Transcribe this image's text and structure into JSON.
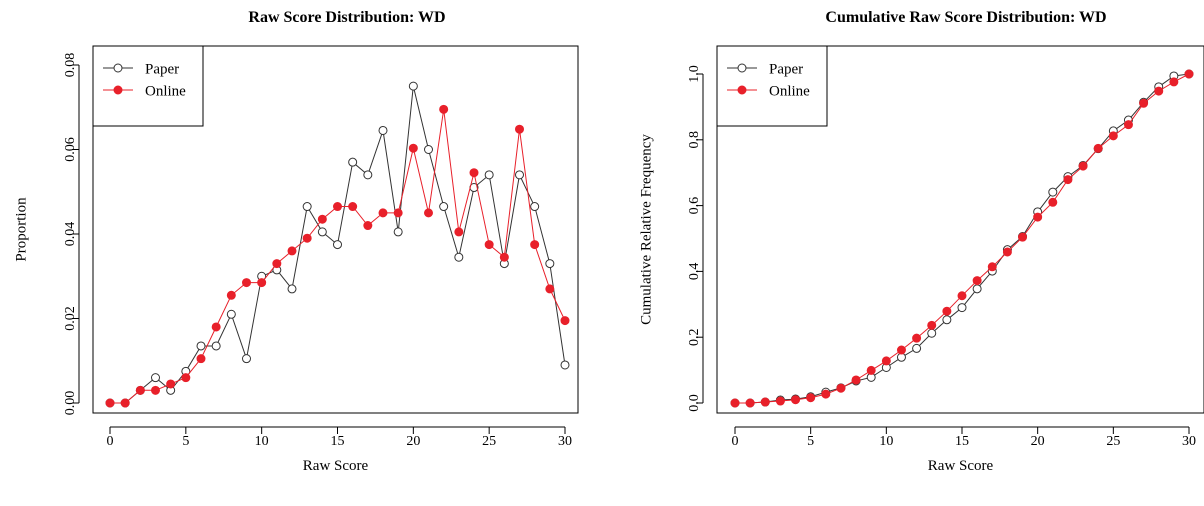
{
  "chart_data": [
    {
      "type": "line",
      "title": "Raw Score Distribution: WD",
      "xlabel": "Raw Score",
      "ylabel": "Proportion",
      "xlim": [
        0,
        30
      ],
      "ylim": [
        0,
        0.08
      ],
      "x_ticks": [
        0,
        5,
        10,
        15,
        20,
        25,
        30
      ],
      "x_tick_labels": [
        "0",
        "5",
        "10",
        "15",
        "20",
        "25",
        "30"
      ],
      "y_ticks": [
        0,
        0.02,
        0.04,
        0.06,
        0.08
      ],
      "y_tick_labels": [
        "0.00",
        "0.02",
        "0.04",
        "0.06",
        "0.08"
      ],
      "grid": false,
      "legend_position": "top-left",
      "x": [
        0,
        1,
        2,
        3,
        4,
        5,
        6,
        7,
        8,
        9,
        10,
        11,
        12,
        13,
        14,
        15,
        16,
        17,
        18,
        19,
        20,
        21,
        22,
        23,
        24,
        25,
        26,
        27,
        28,
        29,
        30
      ],
      "series": [
        {
          "name": "Paper",
          "color": "#333333",
          "marker": "open-circle",
          "values": [
            0.0,
            0.0,
            0.003,
            0.006,
            0.003,
            0.0075,
            0.0135,
            0.0135,
            0.021,
            0.0105,
            0.03,
            0.0315,
            0.027,
            0.0465,
            0.0405,
            0.0375,
            0.057,
            0.054,
            0.0645,
            0.0405,
            0.075,
            0.06,
            0.0465,
            0.0345,
            0.051,
            0.054,
            0.033,
            0.054,
            0.0465,
            0.033,
            0.009
          ]
        },
        {
          "name": "Online",
          "color": "#e8202a",
          "marker": "filled-circle",
          "values": [
            0.0,
            0.0,
            0.003,
            0.003,
            0.0045,
            0.006,
            0.0105,
            0.018,
            0.0255,
            0.0285,
            0.0285,
            0.033,
            0.036,
            0.039,
            0.0435,
            0.0465,
            0.0465,
            0.042,
            0.045,
            0.045,
            0.0603,
            0.045,
            0.0695,
            0.0405,
            0.0545,
            0.0375,
            0.0345,
            0.0648,
            0.0375,
            0.027,
            0.0195
          ]
        }
      ]
    },
    {
      "type": "line",
      "title": "Cumulative Raw Score Distribution: WD",
      "xlabel": "Raw Score",
      "ylabel": "Cumulative Relative Frequency",
      "xlim": [
        0,
        30
      ],
      "ylim": [
        0,
        1.0
      ],
      "x_ticks": [
        0,
        5,
        10,
        15,
        20,
        25,
        30
      ],
      "x_tick_labels": [
        "0",
        "5",
        "10",
        "15",
        "20",
        "25",
        "30"
      ],
      "y_ticks": [
        0,
        0.2,
        0.4,
        0.6,
        0.8,
        1.0
      ],
      "y_tick_labels": [
        "0.0",
        "0.2",
        "0.4",
        "0.6",
        "0.8",
        "1.0"
      ],
      "grid": false,
      "legend_position": "top-left",
      "x": [
        0,
        1,
        2,
        3,
        4,
        5,
        6,
        7,
        8,
        9,
        10,
        11,
        12,
        13,
        14,
        15,
        16,
        17,
        18,
        19,
        20,
        21,
        22,
        23,
        24,
        25,
        26,
        27,
        28,
        29,
        30
      ],
      "series": [
        {
          "name": "Paper",
          "color": "#333333",
          "marker": "open-circle",
          "values": [
            0.0,
            0.0,
            0.003,
            0.009,
            0.012,
            0.019,
            0.033,
            0.046,
            0.067,
            0.078,
            0.108,
            0.139,
            0.166,
            0.212,
            0.253,
            0.29,
            0.347,
            0.401,
            0.466,
            0.506,
            0.581,
            0.641,
            0.688,
            0.722,
            0.773,
            0.827,
            0.86,
            0.914,
            0.961,
            0.994,
            1.0
          ]
        },
        {
          "name": "Online",
          "color": "#e8202a",
          "marker": "filled-circle",
          "values": [
            0.0,
            0.0,
            0.003,
            0.006,
            0.01,
            0.016,
            0.027,
            0.045,
            0.07,
            0.099,
            0.128,
            0.161,
            0.197,
            0.236,
            0.279,
            0.326,
            0.372,
            0.414,
            0.459,
            0.504,
            0.565,
            0.61,
            0.679,
            0.72,
            0.774,
            0.812,
            0.846,
            0.911,
            0.948,
            0.976,
            1.0
          ]
        }
      ]
    }
  ]
}
